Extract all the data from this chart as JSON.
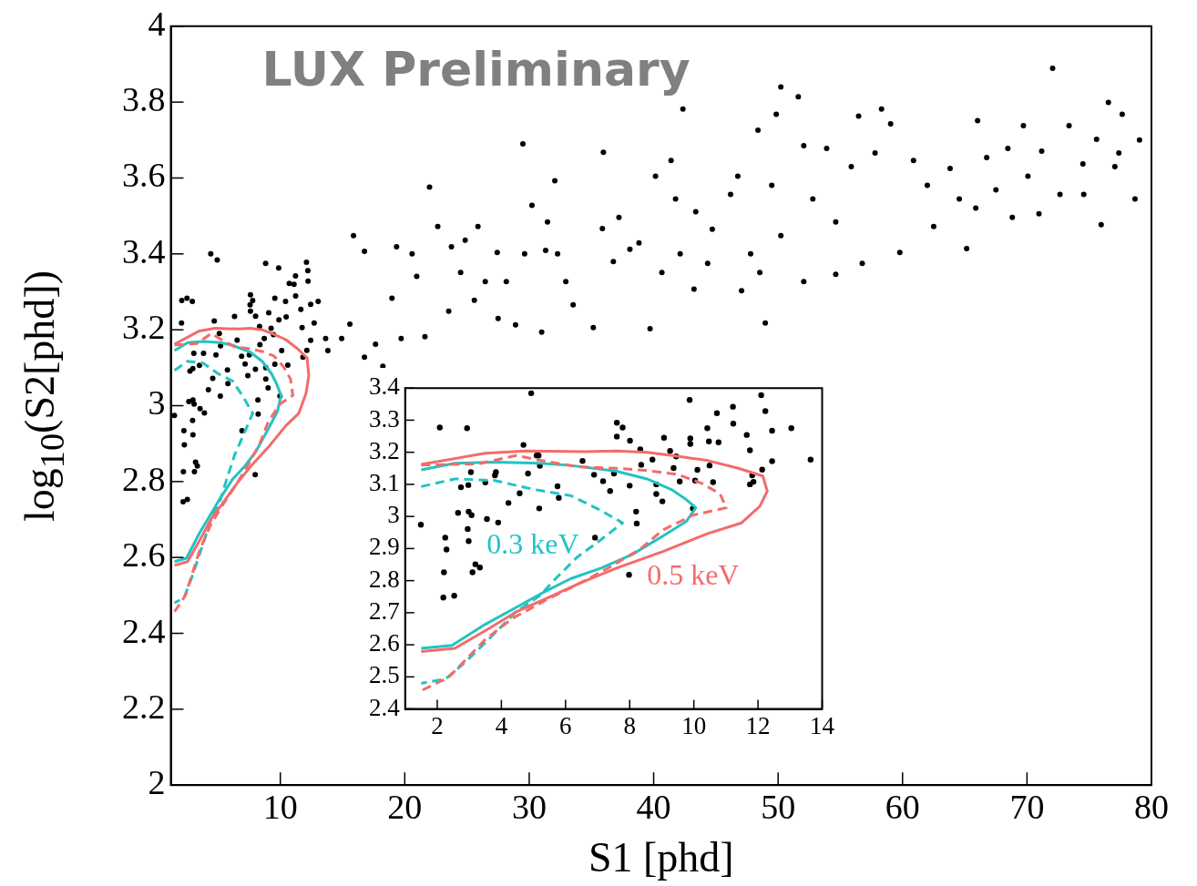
{
  "chart_data": [
    {
      "type": "scatter",
      "xlabel": "S1 [phd]",
      "ylabel": "log$_{10}$(S2[phd])",
      "annotations": [
        "LUX Preliminary"
      ],
      "xlim": [
        1.2,
        80
      ],
      "ylim": [
        2,
        4
      ],
      "xticks": [
        10,
        20,
        30,
        40,
        50,
        60,
        70,
        80
      ],
      "yticks": [
        2,
        2.2,
        2.4,
        2.6,
        2.8,
        3,
        3.2,
        3.4,
        3.6,
        3.8,
        4
      ],
      "grid": false,
      "legend": false,
      "series": [
        {
          "marker": "circle",
          "color": "#000000",
          "x": [
            2.08,
            2.93,
            4.93,
            4.69,
            1.49,
            2.25,
            2.29,
            2.21,
            2.19,
            2.53,
            2.74,
            2.97,
            3.05,
            2.65,
            2.98,
            3.07,
            2.95,
            2.98,
            3.19,
            3.1,
            3.33,
            3.5,
            3.55,
            3.83,
            3.9,
            4.22,
            4.57,
            4.83,
            5.1,
            5.2,
            5.18,
            5.75,
            5.79,
            6.53,
            6.89,
            6.92,
            7.17,
            7.39,
            7.51,
            7.6,
            7.6,
            7.78,
            8.0,
            8.01,
            8.2,
            8.22,
            8.33,
            8.36,
            8.71,
            8.83,
            8.83,
            9.02,
            9.07,
            9.26,
            9.45,
            9.56,
            9.87,
            9.89,
            9.97,
            10.11,
            10.42,
            10.47,
            10.6,
            10.72,
            11.22,
            11.23,
            11.65,
            11.75,
            11.82,
            12.1,
            12.13,
            12.23,
            12.44,
            12.44,
            13.04,
            13.64,
            7.98,
            8.82,
            11.1,
            12.21,
            12.72,
            9.56,
            7.57,
            4.41,
            2.5,
            2.06,
            6.32,
            13.82,
            14.93,
            15.59,
            15.88,
            16.76,
            16.76,
            17.65,
            18.24,
            18.97,
            19.34,
            19.71,
            20.59,
            20.96,
            21.62,
            21.99,
            22.65,
            23.53,
            23.75,
            24.49,
            24.85,
            25.59,
            25.88,
            26.47,
            27.43,
            27.5,
            28.16,
            28.9,
            29.49,
            29.63,
            30.22,
            31.0,
            31.32,
            31.47,
            32.06,
            32.28,
            32.94,
            33.53,
            35.15,
            35.88,
            35.96,
            36.76,
            37.21,
            38.09,
            38.82,
            39.71,
            40.15,
            40.66,
            41.4,
            41.76,
            42.13,
            42.35,
            43.24,
            43.38,
            44.34,
            44.71,
            46.18,
            46.76,
            47.06,
            47.79,
            48.38,
            48.53,
            48.97,
            49.49,
            49.85,
            50.22,
            50.22,
            51.62,
            52.06,
            52.06,
            52.79,
            53.9,
            54.63,
            54.63,
            55.88,
            56.47,
            56.76,
            57.79,
            58.31,
            59.04,
            59.78,
            60.88,
            61.99,
            62.5,
            63.82,
            64.56,
            65.15,
            65.88,
            66.03,
            66.76,
            67.5,
            68.46,
            68.82,
            69.71,
            70.07,
            70.96,
            71.18,
            72.06,
            72.65,
            73.38,
            74.49,
            74.56,
            75.59,
            75.96,
            76.54,
            77.06,
            77.38,
            77.65,
            78.68,
            79.04
          ],
          "values": [
            3.277,
            3.275,
            3.384,
            3.223,
            2.974,
            2.934,
            2.897,
            2.826,
            2.747,
            2.753,
            3.091,
            3.098,
            3.138,
            3.011,
            3.015,
            3.004,
            2.961,
            2.923,
            2.851,
            2.826,
            2.841,
            3.106,
            2.992,
            3.138,
            2.981,
            3.042,
            3.072,
            3.134,
            3.19,
            3.158,
            3.025,
            3.094,
            3.058,
            3.173,
            3.13,
            2.934,
            3.11,
            3.079,
            3.134,
            3.292,
            3.249,
            3.277,
            3.096,
            3.236,
            3.015,
            2.978,
            3.209,
            3.161,
            3.177,
            3.1,
            3.07,
            3.047,
            3.245,
            3.204,
            3.187,
            3.109,
            3.363,
            3.226,
            3.025,
            3.145,
            3.275,
            3.234,
            3.107,
            3.322,
            3.342,
            3.289,
            3.254,
            3.206,
            3.128,
            3.378,
            3.146,
            3.328,
            3.267,
            3.172,
            3.275,
            3.177,
            2.818,
            3.375,
            3.32,
            3.356,
            3.218,
            3.283,
            3.266,
            3.4,
            3.283,
            3.218,
            3.235,
            3.145,
            3.177,
            3.215,
            3.448,
            3.407,
            3.128,
            3.162,
            3.104,
            3.283,
            3.419,
            3.177,
            3.4,
            3.341,
            3.182,
            3.576,
            3.472,
            3.249,
            3.419,
            3.351,
            3.436,
            3.278,
            3.472,
            3.327,
            3.404,
            3.23,
            3.327,
            3.213,
            3.69,
            3.4,
            3.528,
            3.194,
            3.409,
            3.484,
            3.593,
            3.4,
            3.327,
            3.266,
            3.206,
            3.467,
            3.668,
            3.38,
            3.496,
            3.412,
            3.429,
            3.203,
            3.605,
            3.351,
            3.646,
            3.545,
            3.4,
            3.782,
            3.307,
            3.511,
            3.375,
            3.465,
            3.557,
            3.605,
            3.303,
            3.4,
            3.726,
            3.351,
            3.218,
            3.581,
            3.768,
            3.84,
            3.448,
            3.814,
            3.327,
            3.685,
            3.545,
            3.678,
            3.346,
            3.484,
            3.63,
            3.763,
            3.375,
            3.666,
            3.782,
            3.743,
            3.404,
            3.646,
            3.581,
            3.472,
            3.625,
            3.545,
            3.414,
            3.521,
            3.751,
            3.654,
            3.569,
            3.678,
            3.496,
            3.738,
            3.605,
            3.506,
            3.671,
            3.889,
            3.557,
            3.738,
            3.637,
            3.557,
            3.702,
            3.477,
            3.799,
            3.63,
            3.666,
            3.768,
            3.545,
            3.7
          ]
        },
        {
          "type": "line",
          "marker": "none",
          "color": "#f46b6b",
          "line_style": "solid",
          "x": [
            1.5,
            3.5,
            4.74,
            6.64,
            7.59,
            8.54,
            9.49,
            10.44,
            11.39,
            12.15,
            12.29,
            12.06,
            11.49,
            10.44,
            9.02,
            7.59,
            6.45,
            5.5,
            4.45,
            3.6,
            2.55,
            1.5
          ],
          "values": [
            3.162,
            3.197,
            3.204,
            3.202,
            3.204,
            3.2,
            3.188,
            3.174,
            3.15,
            3.126,
            3.079,
            3.032,
            2.98,
            2.947,
            2.89,
            2.839,
            2.792,
            2.749,
            2.702,
            2.65,
            2.589,
            2.579
          ]
        },
        {
          "type": "line",
          "marker": "none",
          "color": "#f46b6b",
          "line_style": "dashed",
          "x": [
            1.5,
            3.31,
            4.45,
            5.21,
            6.35,
            7.59,
            8.54,
            9.49,
            10.25,
            10.82,
            11.01,
            9.97,
            9.02,
            8.35,
            7.4,
            6.35,
            5.4,
            4.36,
            3.5,
            2.36,
            1.5
          ],
          "values": [
            3.16,
            3.164,
            3.19,
            3.175,
            3.155,
            3.15,
            3.143,
            3.131,
            3.103,
            3.07,
            3.027,
            3.004,
            2.957,
            2.9,
            2.843,
            2.787,
            2.74,
            2.683,
            2.617,
            2.499,
            2.457
          ]
        },
        {
          "type": "line",
          "marker": "none",
          "color": "#22c3c3",
          "line_style": "solid",
          "x": [
            1.5,
            2.55,
            3.79,
            5.21,
            6.16,
            7.59,
            8.54,
            9.3,
            9.72,
            10.06,
            9.77,
            9.02,
            8.07,
            7.11,
            6.16,
            5.21,
            4.45,
            3.5,
            2.46,
            1.5
          ],
          "values": [
            3.145,
            3.166,
            3.169,
            3.166,
            3.159,
            3.141,
            3.117,
            3.084,
            3.056,
            3.027,
            2.985,
            2.938,
            2.881,
            2.839,
            2.806,
            2.758,
            2.716,
            2.664,
            2.598,
            2.589
          ]
        },
        {
          "type": "line",
          "marker": "none",
          "color": "#22c3c3",
          "line_style": "dashed",
          "x": [
            1.5,
            2.55,
            3.79,
            5.02,
            6.16,
            7.02,
            7.78,
            7.11,
            6.35,
            5.69,
            5.21,
            4.45,
            3.79,
            2.93,
            2.27,
            1.5
          ],
          "values": [
            3.093,
            3.117,
            3.112,
            3.084,
            3.065,
            3.023,
            2.98,
            2.928,
            2.872,
            2.806,
            2.754,
            2.702,
            2.636,
            2.551,
            2.494,
            2.48
          ]
        }
      ]
    },
    {
      "type": "scatter",
      "xlim": [
        1,
        14
      ],
      "ylim": [
        2.4,
        3.4
      ],
      "xticks": [
        2,
        4,
        6,
        8,
        10,
        12,
        14
      ],
      "yticks": [
        2.4,
        2.5,
        2.6,
        2.7,
        2.8,
        2.9,
        3,
        3.1,
        3.2,
        3.3,
        3.4
      ],
      "grid": false,
      "legend": false,
      "series": [
        {
          "marker": "circle",
          "color": "#000000",
          "x": [
            2.08,
            2.93,
            4.93,
            4.69,
            1.49,
            2.25,
            2.29,
            2.21,
            2.19,
            2.53,
            2.74,
            2.97,
            3.05,
            2.65,
            2.98,
            3.07,
            2.95,
            2.98,
            3.19,
            3.1,
            3.33,
            3.5,
            3.55,
            3.83,
            3.8,
            3.9,
            4.22,
            4.57,
            4.83,
            5.1,
            5.16,
            5.2,
            5.18,
            5.75,
            5.79,
            6.53,
            6.89,
            6.92,
            7.17,
            7.39,
            7.51,
            7.6,
            7.6,
            7.78,
            8.0,
            8.01,
            8.2,
            8.22,
            8.33,
            8.36,
            8.71,
            8.83,
            8.83,
            9.02,
            9.07,
            9.26,
            9.45,
            9.37,
            9.56,
            9.87,
            9.89,
            9.89,
            9.97,
            10.04,
            10.11,
            10.42,
            10.47,
            10.49,
            10.6,
            10.72,
            10.77,
            11.22,
            11.23,
            11.65,
            11.75,
            11.75,
            11.82,
            11.86,
            12.1,
            12.13,
            12.23,
            12.44,
            12.44,
            13.04,
            13.64,
            7.98
          ],
          "values": [
            3.277,
            3.275,
            3.384,
            3.223,
            2.974,
            2.934,
            2.897,
            2.826,
            2.747,
            2.753,
            3.091,
            3.098,
            3.138,
            3.011,
            3.015,
            3.004,
            2.961,
            2.923,
            2.851,
            2.826,
            2.841,
            3.106,
            2.992,
            3.138,
            3.128,
            2.981,
            3.042,
            3.072,
            3.134,
            3.19,
            3.19,
            3.158,
            3.025,
            3.094,
            3.058,
            3.173,
            3.13,
            2.934,
            3.11,
            3.079,
            3.134,
            3.292,
            3.249,
            3.277,
            3.096,
            3.236,
            3.015,
            2.978,
            3.209,
            3.161,
            3.177,
            3.1,
            3.07,
            3.047,
            3.245,
            3.204,
            3.187,
            3.151,
            3.109,
            3.363,
            3.243,
            3.226,
            3.025,
            3.112,
            3.145,
            3.275,
            3.234,
            3.159,
            3.107,
            3.322,
            3.231,
            3.342,
            3.289,
            3.254,
            3.206,
            3.1,
            3.128,
            3.108,
            3.378,
            3.146,
            3.328,
            3.267,
            3.172,
            3.275,
            3.177,
            2.818
          ]
        },
        {
          "type": "line",
          "marker": "none",
          "name": "0.5 keV",
          "color": "#f46b6b",
          "line_style": "solid",
          "x": [
            1.5,
            3.5,
            4.74,
            6.64,
            7.59,
            8.54,
            9.49,
            10.44,
            11.39,
            12.15,
            12.29,
            12.06,
            11.49,
            10.44,
            9.02,
            7.59,
            6.45,
            5.5,
            4.45,
            3.6,
            2.55,
            1.5
          ],
          "values": [
            3.162,
            3.197,
            3.204,
            3.202,
            3.204,
            3.2,
            3.188,
            3.174,
            3.15,
            3.126,
            3.079,
            3.032,
            2.98,
            2.947,
            2.89,
            2.839,
            2.792,
            2.749,
            2.702,
            2.65,
            2.589,
            2.579
          ]
        },
        {
          "type": "line",
          "marker": "none",
          "color": "#f46b6b",
          "line_style": "dashed",
          "x": [
            1.5,
            3.31,
            4.45,
            5.21,
            6.35,
            7.59,
            8.54,
            9.49,
            10.25,
            10.82,
            11.01,
            9.97,
            9.02,
            8.35,
            7.4,
            6.35,
            5.4,
            4.36,
            3.5,
            2.36,
            1.5
          ],
          "values": [
            3.16,
            3.164,
            3.19,
            3.175,
            3.155,
            3.15,
            3.143,
            3.131,
            3.103,
            3.07,
            3.027,
            3.004,
            2.957,
            2.9,
            2.843,
            2.787,
            2.74,
            2.683,
            2.617,
            2.499,
            2.457
          ]
        },
        {
          "type": "line",
          "marker": "none",
          "name": "0.3 keV",
          "color": "#22c3c3",
          "line_style": "solid",
          "x": [
            1.5,
            2.55,
            3.79,
            5.21,
            6.16,
            7.59,
            8.54,
            9.3,
            9.72,
            10.06,
            9.77,
            9.02,
            8.07,
            7.11,
            6.16,
            5.21,
            4.45,
            3.5,
            2.46,
            1.5
          ],
          "values": [
            3.145,
            3.166,
            3.169,
            3.166,
            3.159,
            3.141,
            3.117,
            3.084,
            3.056,
            3.027,
            2.985,
            2.938,
            2.881,
            2.839,
            2.806,
            2.758,
            2.716,
            2.664,
            2.598,
            2.589
          ]
        },
        {
          "type": "line",
          "marker": "none",
          "color": "#22c3c3",
          "line_style": "dashed",
          "x": [
            1.5,
            2.55,
            3.79,
            5.02,
            6.16,
            7.02,
            7.78,
            7.11,
            6.35,
            5.69,
            5.21,
            4.45,
            3.79,
            2.93,
            2.27,
            1.5
          ],
          "values": [
            3.093,
            3.117,
            3.112,
            3.084,
            3.065,
            3.023,
            2.98,
            2.928,
            2.872,
            2.806,
            2.754,
            2.702,
            2.636,
            2.551,
            2.494,
            2.48
          ]
        }
      ]
    }
  ]
}
